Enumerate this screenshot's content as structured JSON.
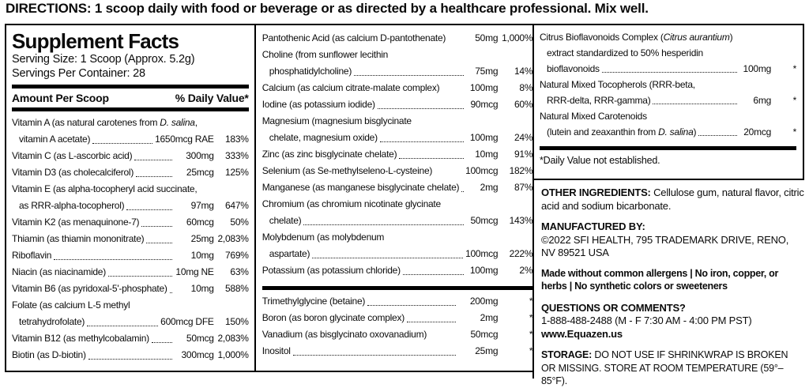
{
  "directions": "DIRECTIONS: 1 scoop daily with food or beverage or as directed by a healthcare professional. Mix well.",
  "supplement_facts": {
    "title": "Supplement Facts",
    "serving_size": "Serving Size: 1 Scoop (Approx. 5.2g)",
    "servings_per_container": "Servings Per Container: 28",
    "amount_header": "Amount Per Scoop",
    "dv_header": "% Daily Value*",
    "dv_footnote": "*Daily Value not established."
  },
  "columns": {
    "col1": [
      {
        "lines": [
          [
            "Vitamin A (as natural carotenes from ",
            {
              "i": "D. salina"
            },
            ","
          ],
          [
            "vitamin A acetate)"
          ]
        ],
        "amount": "1650mcg RAE",
        "dv": "183%"
      },
      {
        "lines": [
          [
            "Vitamin C (as L-ascorbic acid)"
          ]
        ],
        "amount": "300mg",
        "dv": "333%"
      },
      {
        "lines": [
          [
            "Vitamin D3 (as cholecalciferol)"
          ]
        ],
        "amount": "25mcg",
        "dv": "125%"
      },
      {
        "lines": [
          [
            "Vitamin E (as alpha-tocopheryl acid succinate,"
          ],
          [
            "as RRR-alpha-tocopherol)"
          ]
        ],
        "amount": "97mg",
        "dv": "647%"
      },
      {
        "lines": [
          [
            "Vitamin K2 (as menaquinone-7)"
          ]
        ],
        "amount": "60mcg",
        "dv": "50%"
      },
      {
        "lines": [
          [
            "Thiamin (as thiamin mononitrate)"
          ]
        ],
        "amount": "25mg",
        "dv": "2,083%"
      },
      {
        "lines": [
          [
            "Riboflavin"
          ]
        ],
        "amount": "10mg",
        "dv": "769%"
      },
      {
        "lines": [
          [
            "Niacin (as niacinamide)"
          ]
        ],
        "amount": "10mg NE",
        "dv": "63%"
      },
      {
        "lines": [
          [
            "Vitamin B6 (as pyridoxal-5'-phosphate)"
          ]
        ],
        "amount": "10mg",
        "dv": "588%"
      },
      {
        "lines": [
          [
            "Folate (as calcium L-5 methyl"
          ],
          [
            "tetrahydrofolate)"
          ]
        ],
        "amount": "600mcg DFE",
        "dv": "150%"
      },
      {
        "lines": [
          [
            "Vitamin B12 (as methylcobalamin)"
          ]
        ],
        "amount": "50mcg",
        "dv": "2,083%"
      },
      {
        "lines": [
          [
            "Biotin (as D-biotin)"
          ]
        ],
        "amount": "300mcg",
        "dv": "1,000%"
      }
    ],
    "col2": [
      {
        "lines": [
          [
            "Pantothenic Acid (as calcium D-pantothenate)"
          ]
        ],
        "amount": "50mg",
        "dv": "1,000%",
        "dots": false
      },
      {
        "lines": [
          [
            "Choline (from sunflower lecithin"
          ],
          [
            "phosphatidylcholine)"
          ]
        ],
        "amount": "75mg",
        "dv": "14%"
      },
      {
        "lines": [
          [
            "Calcium (as calcium citrate-malate complex)"
          ]
        ],
        "amount": "100mg",
        "dv": "8%",
        "dots": false
      },
      {
        "lines": [
          [
            "Iodine (as potassium iodide)"
          ]
        ],
        "amount": "90mcg",
        "dv": "60%"
      },
      {
        "lines": [
          [
            "Magnesium (magnesium bisglycinate"
          ],
          [
            "chelate, magnesium oxide)"
          ]
        ],
        "amount": "100mg",
        "dv": "24%"
      },
      {
        "lines": [
          [
            "Zinc (as zinc bisglycinate chelate)"
          ]
        ],
        "amount": "10mg",
        "dv": "91%"
      },
      {
        "lines": [
          [
            "Selenium (as Se-methylseleno-L-cysteine)"
          ]
        ],
        "amount": "100mcg",
        "dv": "182%",
        "dots": false
      },
      {
        "lines": [
          [
            "Manganese (as manganese bisglycinate chelate)"
          ]
        ],
        "amount": "2mg",
        "dv": "87%"
      },
      {
        "lines": [
          [
            "Chromium (as chromium nicotinate glycinate"
          ],
          [
            "chelate)"
          ]
        ],
        "amount": "50mcg",
        "dv": "143%"
      },
      {
        "lines": [
          [
            "Molybdenum (as molybdenum"
          ],
          [
            "aspartate)"
          ]
        ],
        "amount": "100mcg",
        "dv": "222%"
      },
      {
        "lines": [
          [
            "Potassium (as potassium chloride)"
          ]
        ],
        "amount": "100mg",
        "dv": "2%"
      }
    ],
    "col2b": [
      {
        "lines": [
          [
            "Trimethylglycine (betaine)"
          ]
        ],
        "amount": "200mg",
        "dv": "*"
      },
      {
        "lines": [
          [
            "Boron (as boron glycinate complex)"
          ]
        ],
        "amount": "2mg",
        "dv": "*"
      },
      {
        "lines": [
          [
            "Vanadium (as bisglycinato oxovanadium)"
          ]
        ],
        "amount": "50mcg",
        "dv": "*",
        "dots": false
      },
      {
        "lines": [
          [
            "Inositol"
          ]
        ],
        "amount": "25mg",
        "dv": "*"
      }
    ],
    "col3": [
      {
        "lines": [
          [
            "Citrus Bioflavonoids Complex (",
            {
              "i": "Citrus aurantium"
            },
            ")"
          ],
          [
            "extract standardized to 50% hesperidin"
          ],
          [
            "bioflavonoids"
          ]
        ],
        "amount": "100mg",
        "dv": "*"
      },
      {
        "lines": [
          [
            "Natural Mixed Tocopherols (RRR-beta,"
          ],
          [
            "RRR-delta, RRR-gamma)"
          ]
        ],
        "amount": "6mg",
        "dv": "*"
      },
      {
        "lines": [
          [
            "Natural Mixed Carotenoids"
          ],
          [
            "(lutein and zeaxanthin from ",
            {
              "i": "D. salina"
            },
            ")"
          ]
        ],
        "amount": "20mcg",
        "dv": "*"
      }
    ]
  },
  "info": {
    "other_ingredients_label": "OTHER INGREDIENTS:",
    "other_ingredients_text": " Cellulose gum, natural flavor, citric acid and sodium bicarbonate.",
    "manufactured_label": "MANUFACTURED BY:",
    "manufactured_address": "©2022 SFI HEALTH, 795 TRADEMARK DRIVE, RENO, NV 89521 USA",
    "allergens": "Made without common allergens | No iron, copper, or herbs | No synthetic colors or sweeteners",
    "questions_label": "QUESTIONS OR COMMENTS?",
    "phone": "1-888-488-2488 (M - F 7:30 AM - 4:00 PM PST)",
    "website": "www.Equazen.us",
    "storage_label": "STORAGE:",
    "storage_text": " DO NOT USE IF SHRINKWRAP IS BROKEN OR MISSING. STORE AT ROOM TEMPERATURE (59°– 85°F)."
  }
}
